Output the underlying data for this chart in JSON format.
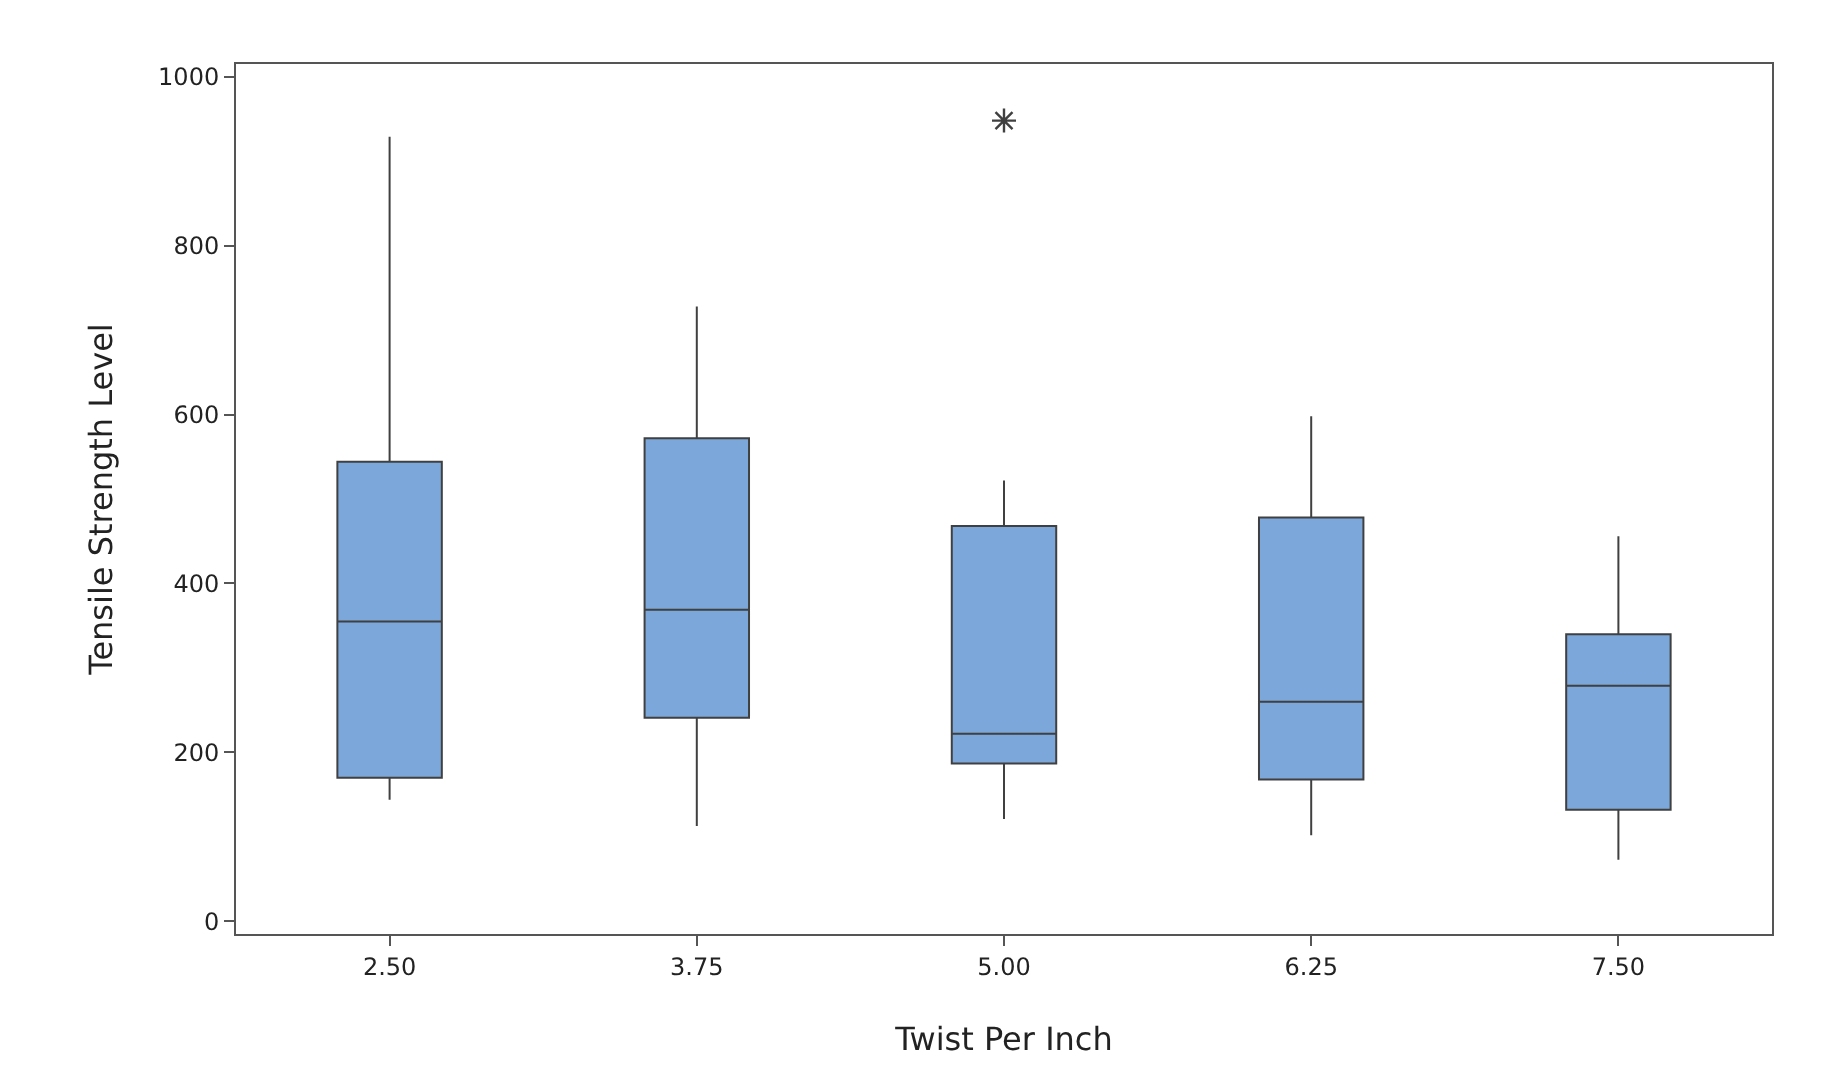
{
  "chart_data": {
    "type": "box",
    "xlabel": "Twist Per Inch",
    "ylabel": "Tensile Strength Level",
    "categories": [
      "2.50",
      "3.75",
      "5.00",
      "6.25",
      "7.50"
    ],
    "color": "#7ba7da",
    "boxes": [
      {
        "low": 144,
        "q1": 170,
        "median": 355,
        "q3": 544,
        "high": 929
      },
      {
        "low": 113,
        "q1": 241,
        "median": 369,
        "q3": 572,
        "high": 728
      },
      {
        "low": 121,
        "q1": 187,
        "median": 222,
        "q3": 468,
        "high": 522,
        "outliers": [
          948
        ]
      },
      {
        "low": 102,
        "q1": 168,
        "median": 260,
        "q3": 478,
        "high": 598
      },
      {
        "low": 73,
        "q1": 132,
        "median": 279,
        "q3": 340,
        "high": 456
      }
    ],
    "ylim": [
      -15,
      1015
    ],
    "yticks": [
      0,
      200,
      400,
      600,
      800,
      1000
    ],
    "grid": false
  }
}
